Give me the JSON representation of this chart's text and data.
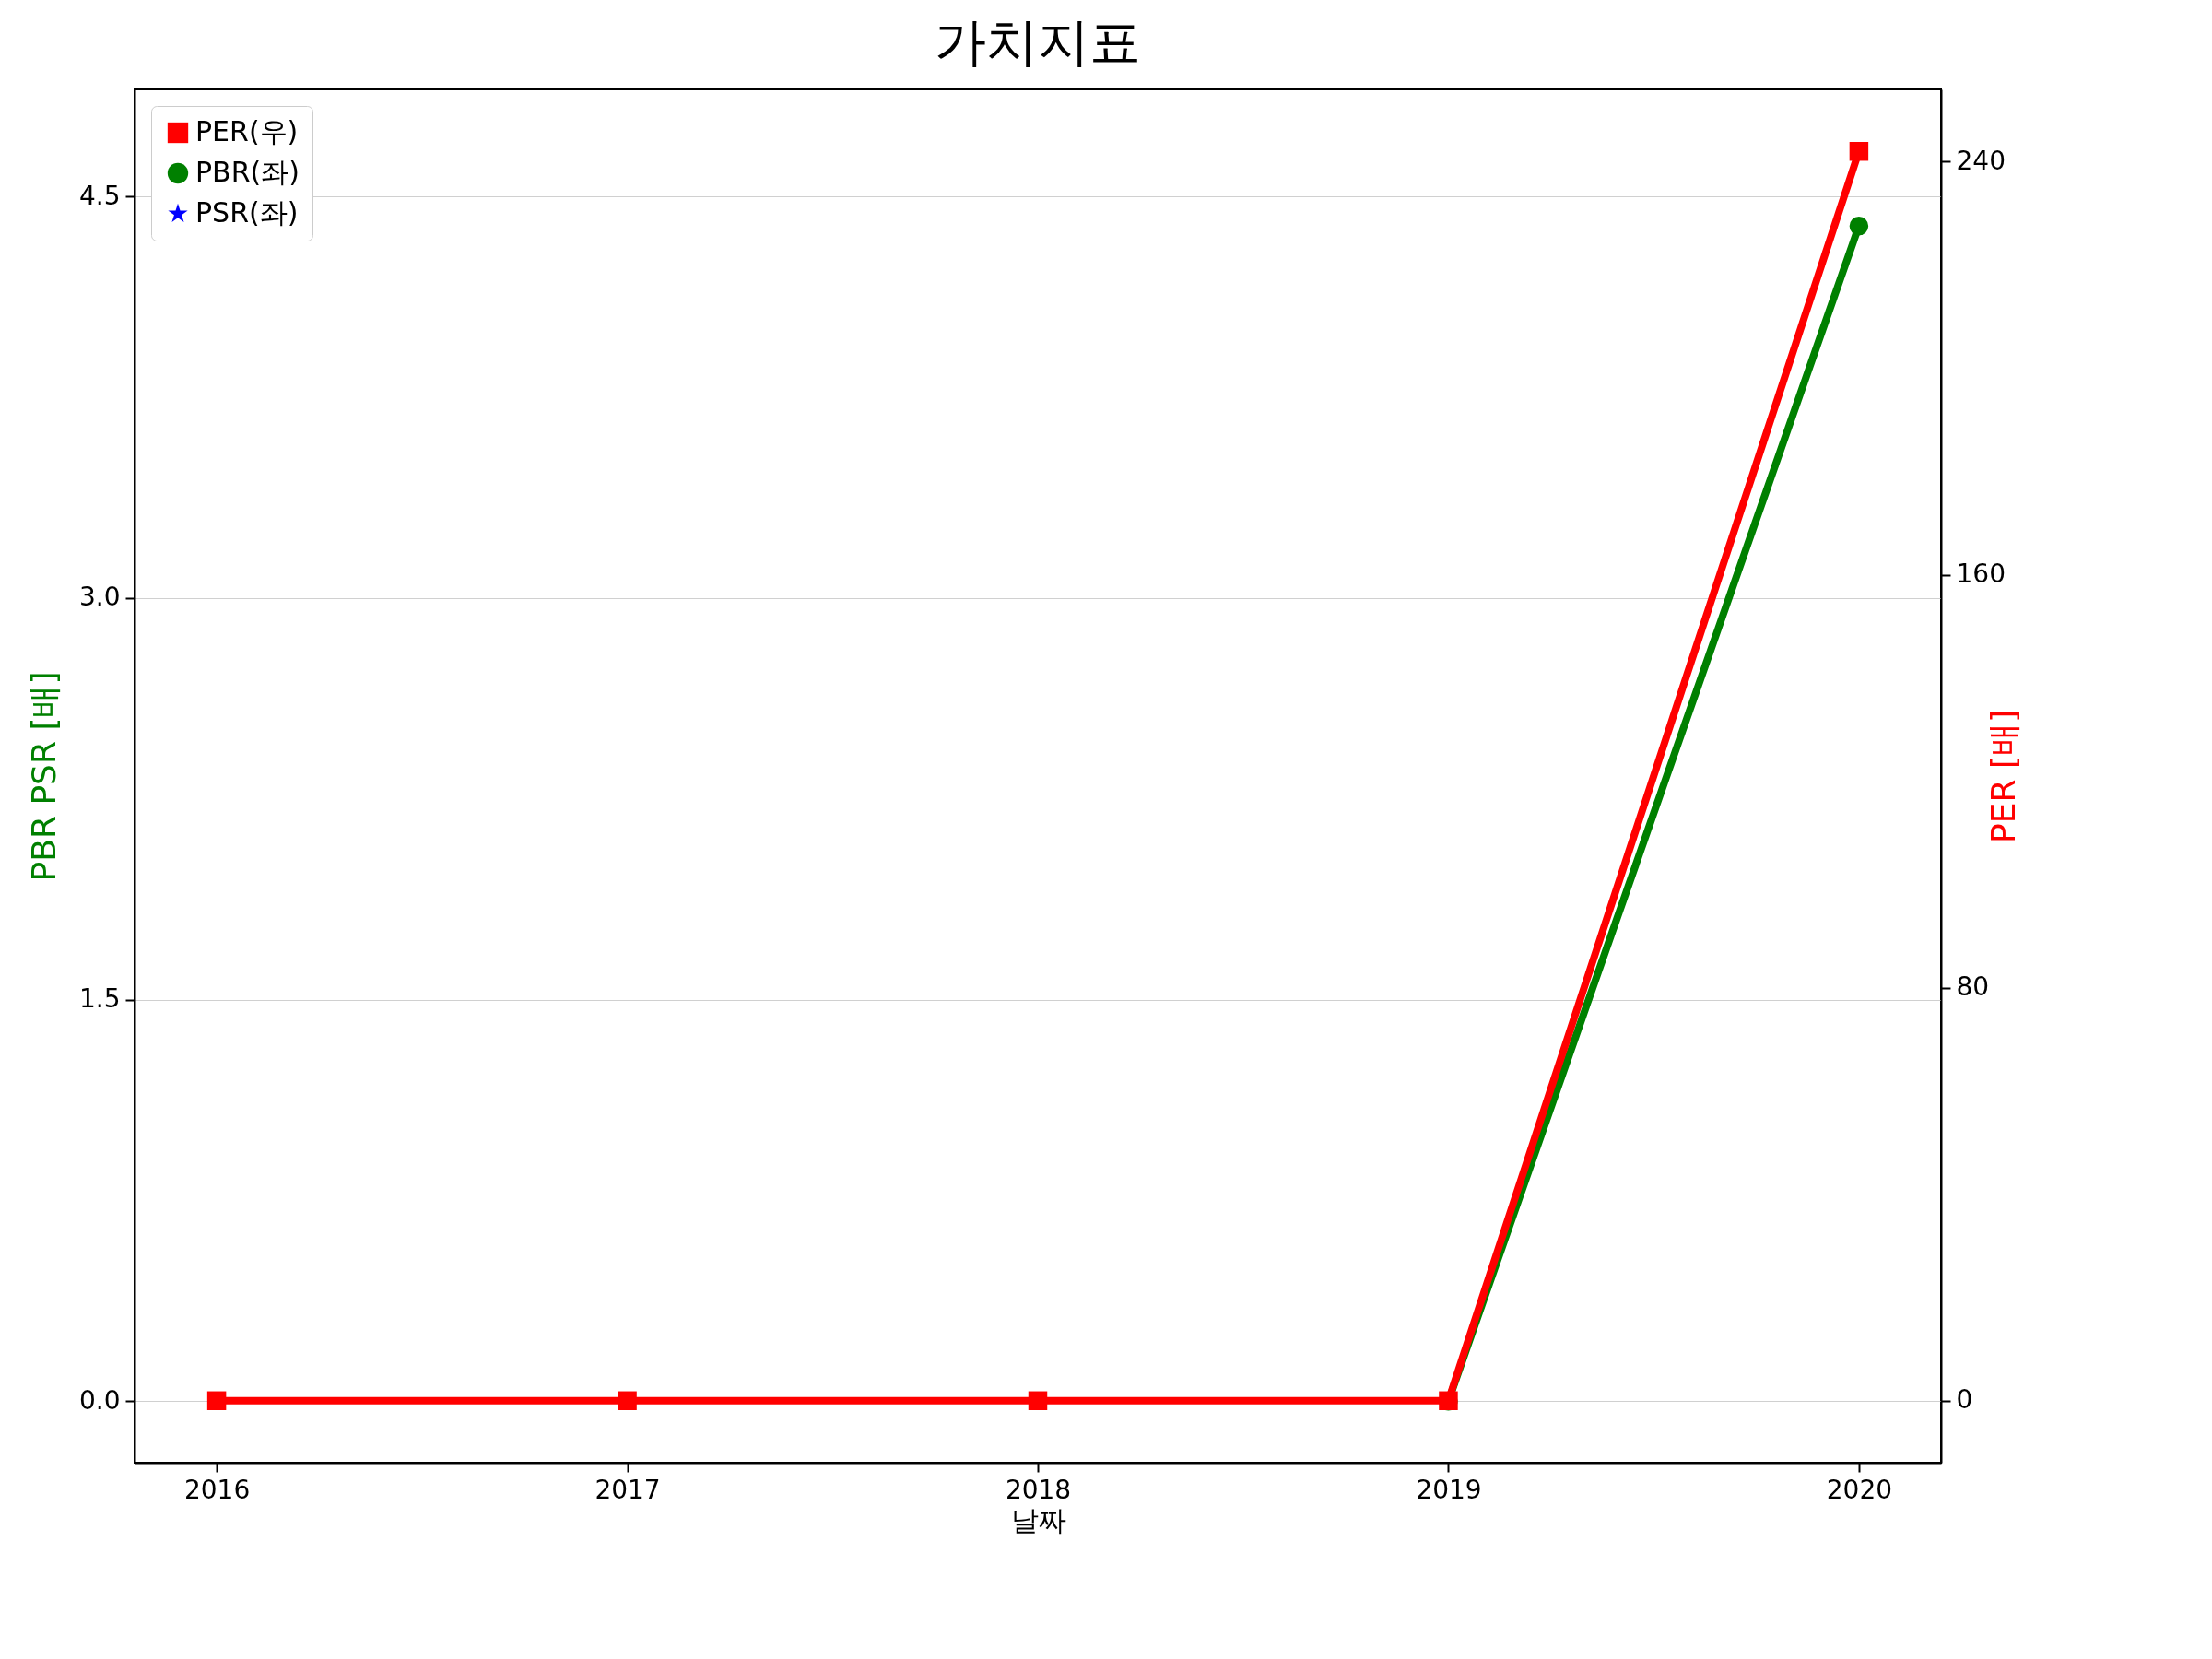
{
  "chart_data": {
    "type": "line",
    "title": "가치지표",
    "xlabel": "날짜",
    "ylabel": "PBR PSR [배]",
    "y2label": "PER [배]",
    "x": [
      2016,
      2017,
      2018,
      2019,
      2020
    ],
    "xlim": [
      2015.8,
      2020.2
    ],
    "xticks": [
      2016,
      2017,
      2018,
      2019,
      2020
    ],
    "ylim": [
      -0.23,
      4.9
    ],
    "yticks": [
      {
        "value": 0,
        "label": "0.0"
      },
      1.5,
      {
        "value": 3,
        "label": "3.0"
      },
      4.5
    ],
    "y2lim": [
      -12,
      254
    ],
    "y2ticks": [
      0,
      80,
      160,
      240
    ],
    "grid": "y",
    "legend": "top left",
    "series": [
      {
        "name": "PER(우)",
        "color": "#ff0000",
        "axis": "y2",
        "marker": "square",
        "values": [
          0,
          0,
          0,
          0,
          242
        ]
      },
      {
        "name": "PBR(좌)",
        "color": "#008000",
        "axis": "y",
        "marker": "circle",
        "values": [
          null,
          null,
          null,
          0,
          4.39
        ]
      },
      {
        "name": "PSR(좌)",
        "color": "#0000ff",
        "axis": "y",
        "marker": "star",
        "values": [
          null,
          null,
          null,
          null,
          null
        ]
      }
    ]
  }
}
